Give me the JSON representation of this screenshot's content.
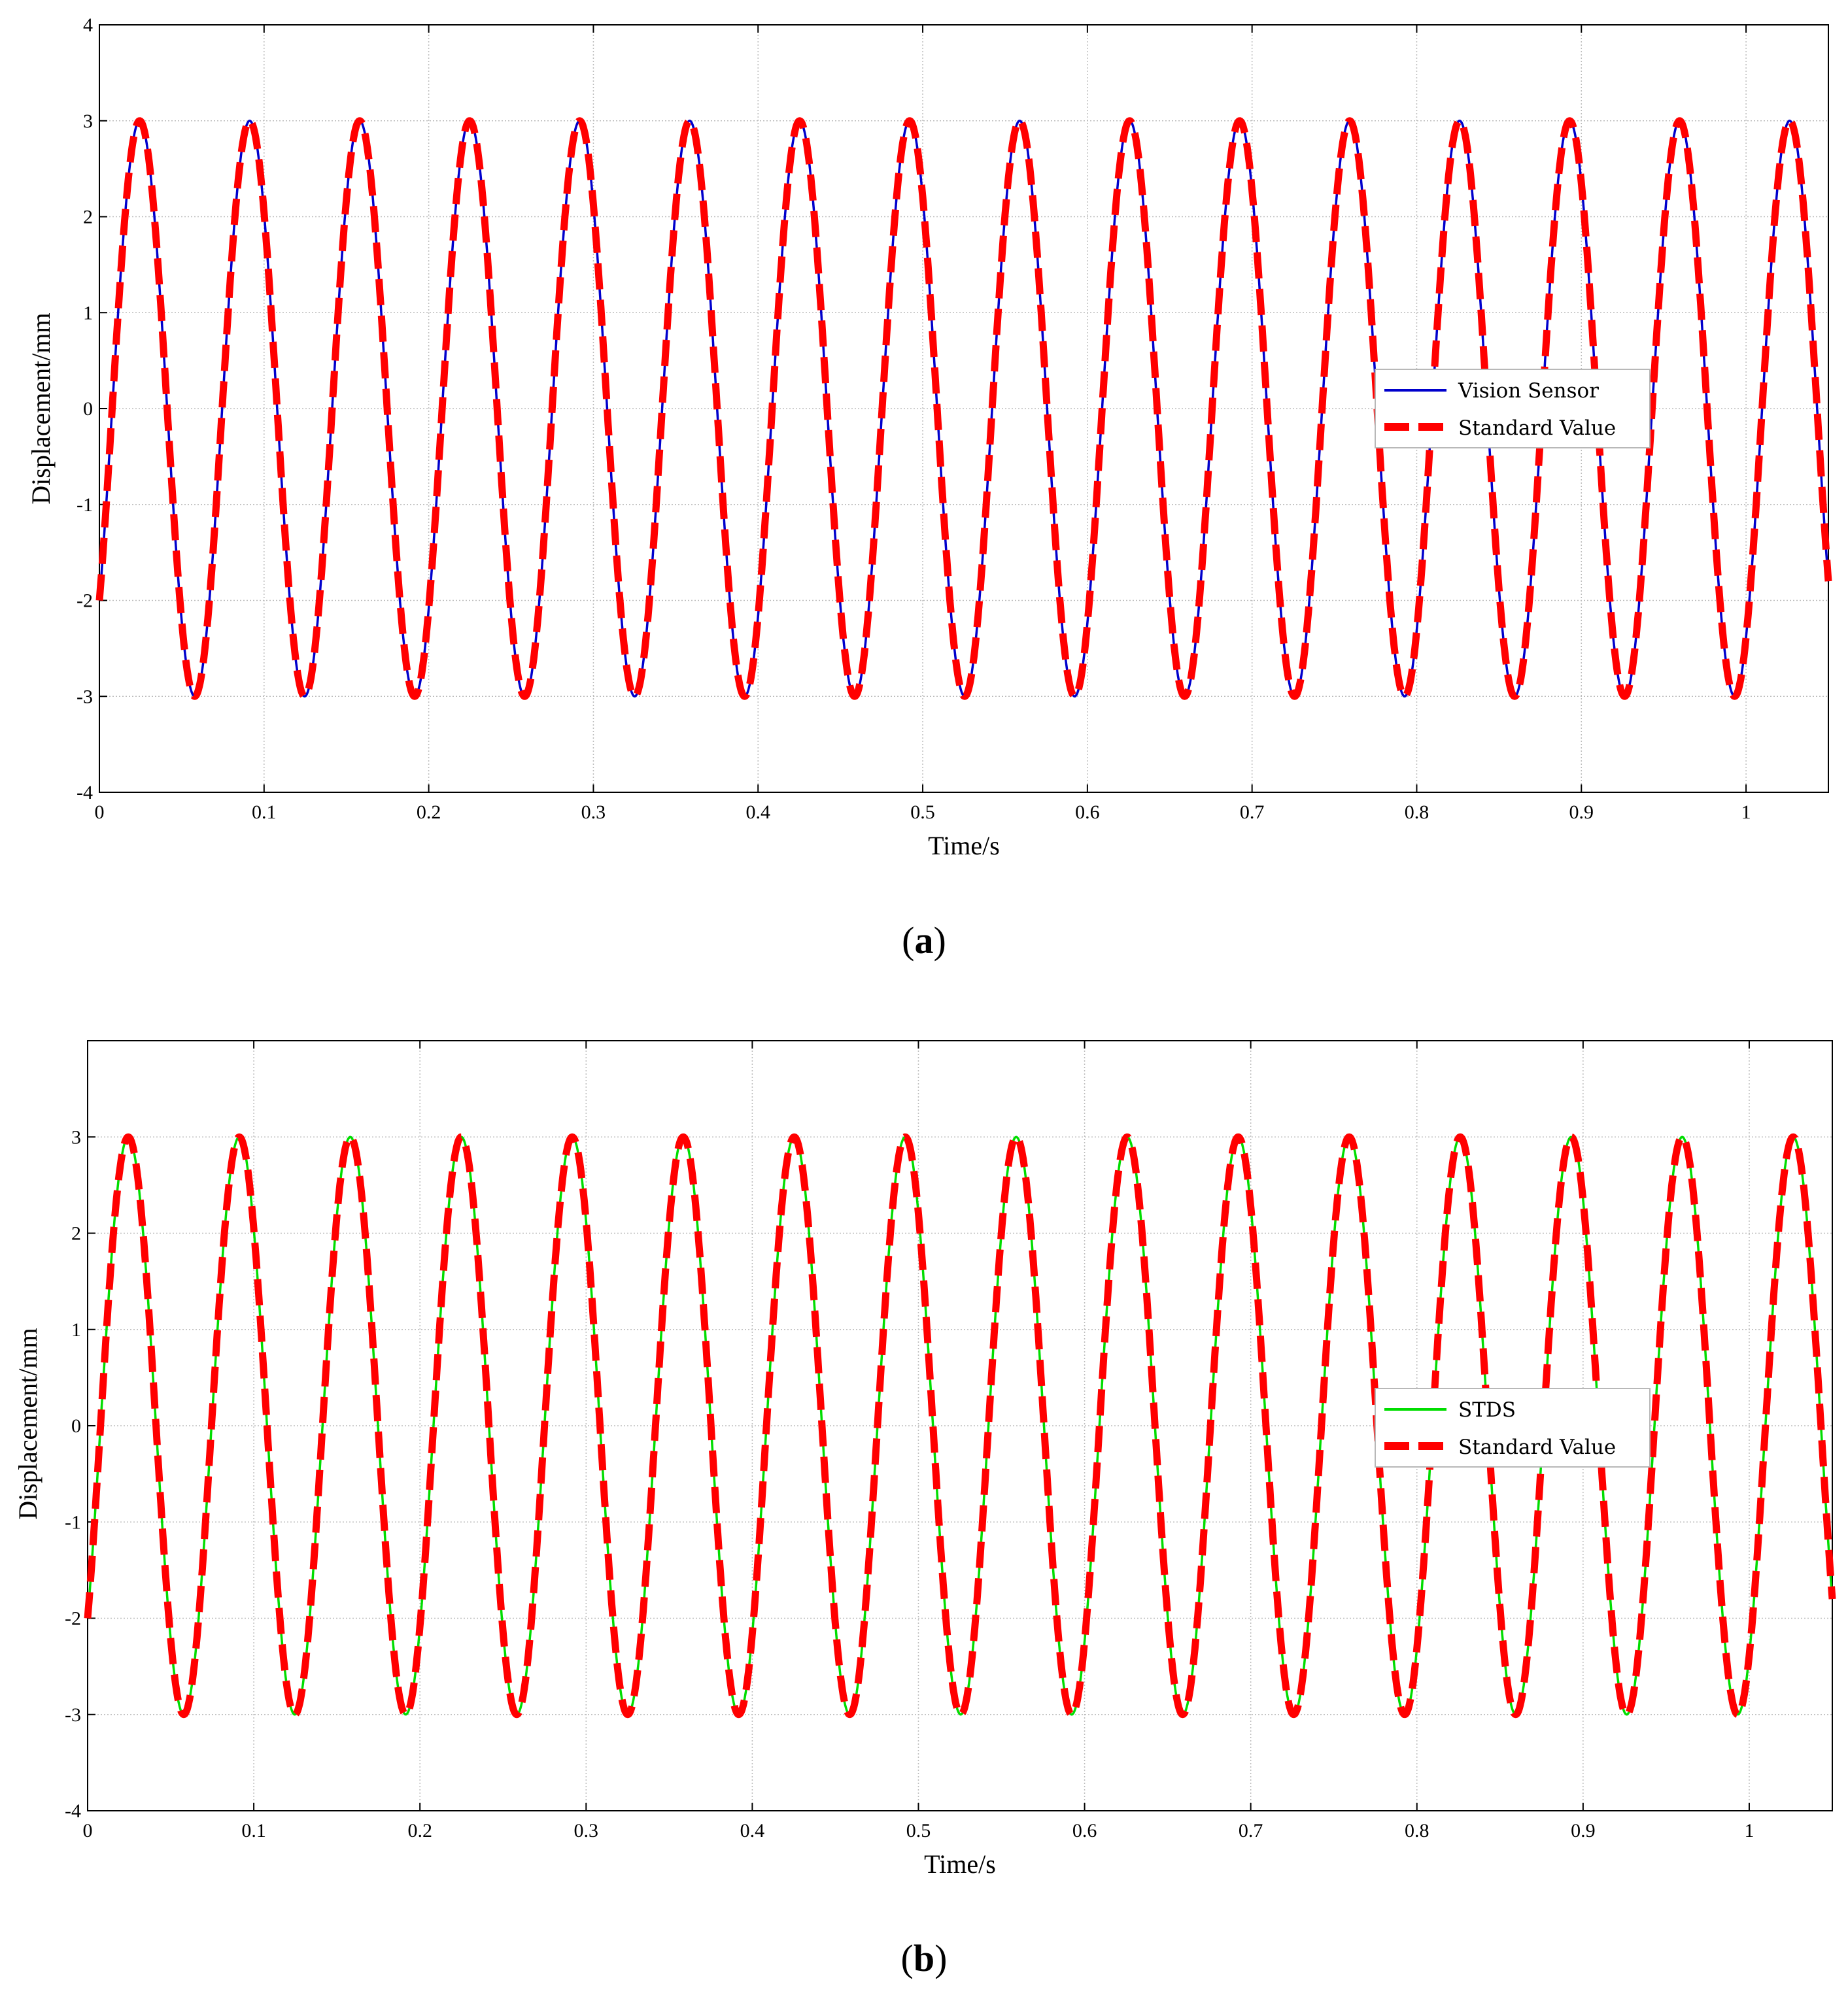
{
  "figure": {
    "panels": [
      {
        "label_open": "(",
        "label_letter": "a",
        "label_close": ")"
      },
      {
        "label_open": "(",
        "label_letter": "b",
        "label_close": ")"
      }
    ]
  },
  "chart_data": [
    {
      "type": "line",
      "title": "",
      "xlabel": "Time/s",
      "ylabel": "Displacement/mm",
      "xlim": [
        0,
        1.05
      ],
      "ylim": [
        -4,
        4
      ],
      "x_ticks": [
        0,
        0.1,
        0.2,
        0.3,
        0.4,
        0.5,
        0.6,
        0.7,
        0.8,
        0.9,
        1
      ],
      "x_tick_labels": [
        "0",
        "0.1",
        "0.2",
        "0.3",
        "0.4",
        "0.5",
        "0.6",
        "0.7",
        "0.8",
        "0.9",
        "1"
      ],
      "y_ticks": [
        4,
        3,
        2,
        1,
        0,
        -1,
        -2,
        -3,
        -4
      ],
      "y_tick_labels": [
        "4",
        "3",
        "2",
        "1",
        "0",
        "-1",
        "-2",
        "-3",
        "-4"
      ],
      "grid": true,
      "legend_position": "center-right",
      "signal": {
        "amplitude": 3,
        "period": 0.0668,
        "initial_value": -2,
        "x_start": 0,
        "x_end": 1.05
      },
      "series": [
        {
          "name": "Vision Sensor",
          "color": "#0000cc",
          "style": "solid"
        },
        {
          "name": "Standard Value",
          "color": "#ff0000",
          "style": "dashed"
        }
      ]
    },
    {
      "type": "line",
      "title": "",
      "xlabel": "Time/s",
      "ylabel": "Displacement/mm",
      "xlim": [
        0,
        1.05
      ],
      "ylim": [
        -4,
        4
      ],
      "x_ticks": [
        0,
        0.1,
        0.2,
        0.3,
        0.4,
        0.5,
        0.6,
        0.7,
        0.8,
        0.9,
        1
      ],
      "x_tick_labels": [
        "0",
        "0.1",
        "0.2",
        "0.3",
        "0.4",
        "0.5",
        "0.6",
        "0.7",
        "0.8",
        "0.9",
        "1"
      ],
      "y_ticks": [
        3,
        2,
        1,
        0,
        -1,
        -2,
        -3,
        -4
      ],
      "y_tick_labels": [
        "3",
        "2",
        "1",
        "0",
        "-1",
        "-2",
        "-3",
        "-4"
      ],
      "grid": true,
      "legend_position": "center-right",
      "signal": {
        "amplitude": 3,
        "period": 0.0668,
        "initial_value": -2,
        "x_start": 0,
        "x_end": 1.05
      },
      "series": [
        {
          "name": "STDS",
          "color": "#00dd00",
          "style": "solid"
        },
        {
          "name": "Standard Value",
          "color": "#ff0000",
          "style": "dashed"
        }
      ]
    }
  ]
}
